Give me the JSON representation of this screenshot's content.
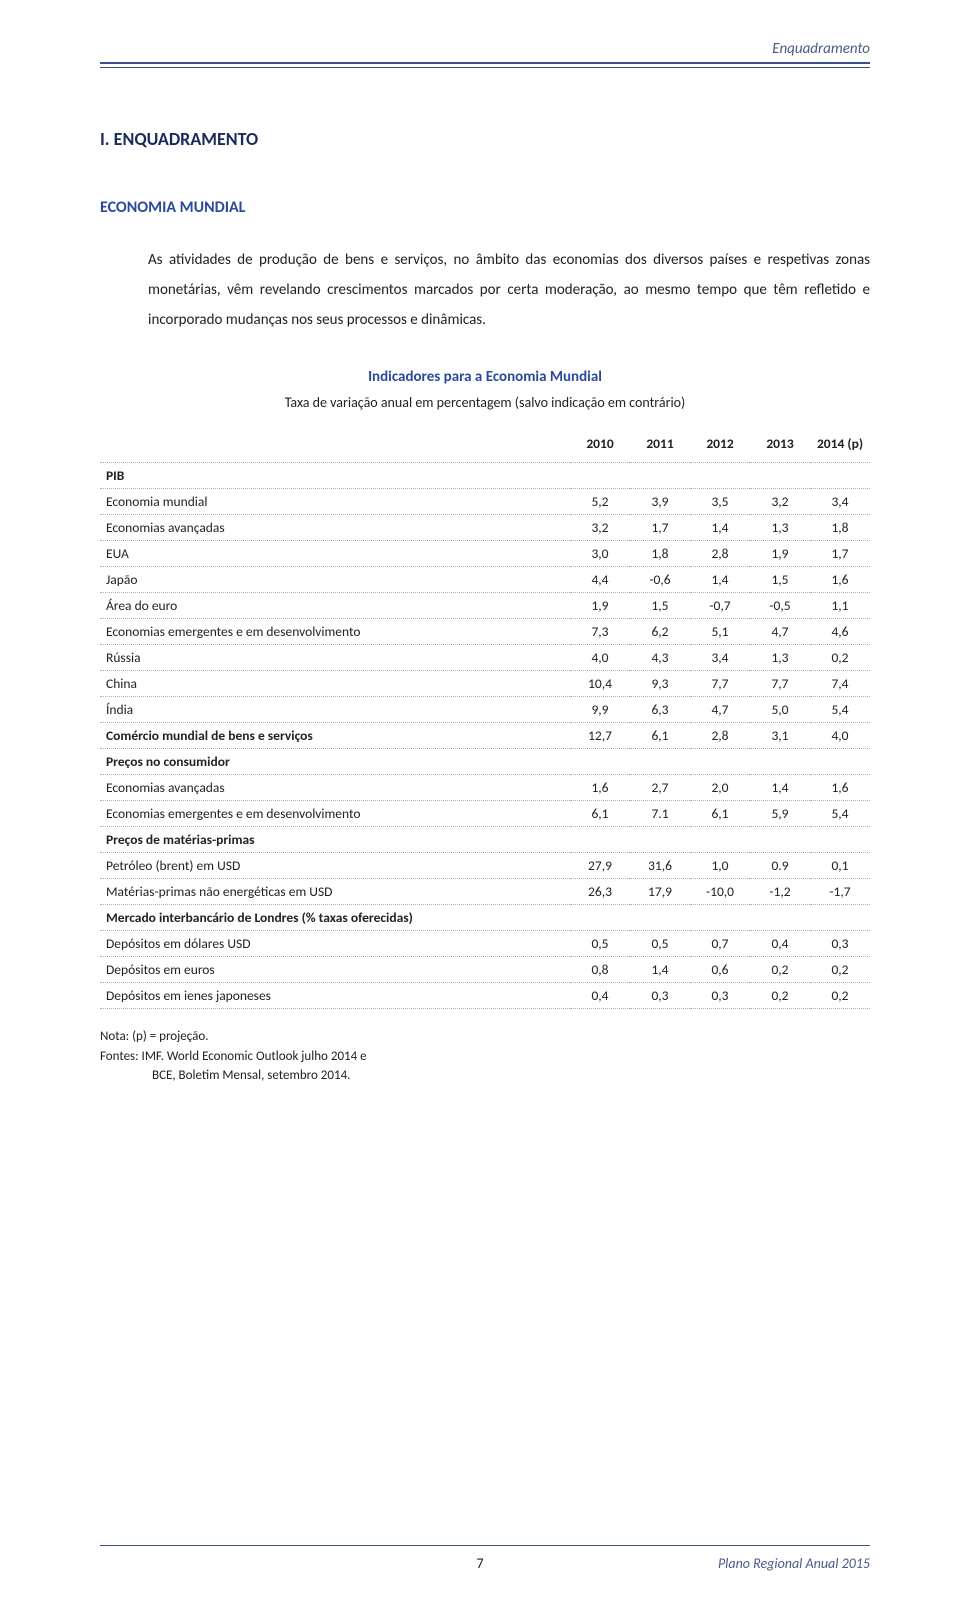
{
  "header": {
    "running_title": "Enquadramento"
  },
  "section": {
    "number_title": "I.    ENQUADRAMENTO",
    "subtitle": "ECONOMIA MUNDIAL",
    "paragraph": "As atividades de produção de bens e serviços, no âmbito das economias dos diversos países e respetivas zonas monetárias, vêm revelando crescimentos marcados por certa moderação, ao mesmo tempo que têm refletido e incorporado mudanças nos seus processos e dinâmicas."
  },
  "table": {
    "caption": "Indicadores para a Economia Mundial",
    "subcaption": "Taxa de variação anual em percentagem (salvo indicação em contrário)",
    "years": [
      "2010",
      "2011",
      "2012",
      "2013",
      "2014 (p)"
    ],
    "rows": [
      {
        "label": "PIB",
        "indent": 0,
        "bold": true,
        "vals": [
          "",
          "",
          "",
          "",
          ""
        ]
      },
      {
        "label": "Economia mundial",
        "indent": 1,
        "bold": false,
        "vals": [
          "5,2",
          "3,9",
          "3,5",
          "3,2",
          "3,4"
        ]
      },
      {
        "label": "Economias avançadas",
        "indent": 1,
        "bold": false,
        "vals": [
          "3,2",
          "1,7",
          "1,4",
          "1,3",
          "1,8"
        ]
      },
      {
        "label": "EUA",
        "indent": 2,
        "bold": false,
        "vals": [
          "3,0",
          "1,8",
          "2,8",
          "1,9",
          "1,7"
        ]
      },
      {
        "label": "Japão",
        "indent": 2,
        "bold": false,
        "vals": [
          "4,4",
          "-0,6",
          "1,4",
          "1,5",
          "1,6"
        ]
      },
      {
        "label": "Área do euro",
        "indent": 2,
        "bold": false,
        "vals": [
          "1,9",
          "1,5",
          "-0,7",
          "-0,5",
          "1,1"
        ]
      },
      {
        "label": "Economias emergentes e em desenvolvimento",
        "indent": 1,
        "bold": false,
        "vals": [
          "7,3",
          "6,2",
          "5,1",
          "4,7",
          "4,6"
        ]
      },
      {
        "label": "Rússia",
        "indent": 2,
        "bold": false,
        "vals": [
          "4,0",
          "4,3",
          "3,4",
          "1,3",
          "0,2"
        ]
      },
      {
        "label": "China",
        "indent": 2,
        "bold": false,
        "vals": [
          "10,4",
          "9,3",
          "7,7",
          "7,7",
          "7,4"
        ]
      },
      {
        "label": "Índia",
        "indent": 2,
        "bold": false,
        "vals": [
          "9,9",
          "6,3",
          "4,7",
          "5,0",
          "5,4"
        ]
      },
      {
        "label": "Comércio mundial de bens e serviços",
        "indent": 0,
        "bold": true,
        "vals": [
          "12,7",
          "6,1",
          "2,8",
          "3,1",
          "4,0"
        ]
      },
      {
        "label": "Preços no consumidor",
        "indent": 0,
        "bold": true,
        "vals": [
          "",
          "",
          "",
          "",
          ""
        ]
      },
      {
        "label": "Economias avançadas",
        "indent": 1,
        "bold": false,
        "vals": [
          "1,6",
          "2,7",
          "2,0",
          "1,4",
          "1,6"
        ]
      },
      {
        "label": "Economias emergentes e em desenvolvimento",
        "indent": 1,
        "bold": false,
        "vals": [
          "6,1",
          "7.1",
          "6,1",
          "5,9",
          "5,4"
        ]
      },
      {
        "label": "Preços de matérias-primas",
        "indent": 0,
        "bold": true,
        "vals": [
          "",
          "",
          "",
          "",
          ""
        ]
      },
      {
        "label": "Petróleo (brent) em USD",
        "indent": 1,
        "bold": false,
        "vals": [
          "27,9",
          "31,6",
          "1,0",
          "0.9",
          "0,1"
        ]
      },
      {
        "label": "Matérias-primas não energéticas em USD",
        "indent": 1,
        "bold": false,
        "vals": [
          "26,3",
          "17,9",
          "-10,0",
          "-1,2",
          "-1,7"
        ]
      },
      {
        "label": "Mercado interbancário de Londres (% taxas oferecidas)",
        "indent": 0,
        "bold": true,
        "vals": [
          "",
          "",
          "",
          "",
          ""
        ]
      },
      {
        "label": "Depósitos em dólares USD",
        "indent": 1,
        "bold": false,
        "vals": [
          "0,5",
          "0,5",
          "0,7",
          "0,4",
          "0,3"
        ]
      },
      {
        "label": "Depósitos em euros",
        "indent": 1,
        "bold": false,
        "vals": [
          "0,8",
          "1,4",
          "0,6",
          "0,2",
          "0,2"
        ]
      },
      {
        "label": "Depósitos em ienes japoneses",
        "indent": 1,
        "bold": false,
        "vals": [
          "0,4",
          "0,3",
          "0,3",
          "0,2",
          "0,2"
        ]
      }
    ]
  },
  "notes": {
    "line1": "Nota: (p) = projeção.",
    "line2": "Fontes:  IMF. World Economic Outlook julho 2014 e",
    "line3": "BCE, Boletim Mensal, setembro 2014."
  },
  "footer": {
    "title": "Plano Regional Anual 2015",
    "page": "7"
  },
  "colors": {
    "accent": "#3b4f8f",
    "heading": "#2a4a9a",
    "text": "#222222",
    "bg": "#ffffff",
    "dotted": "#b0b0b0"
  }
}
